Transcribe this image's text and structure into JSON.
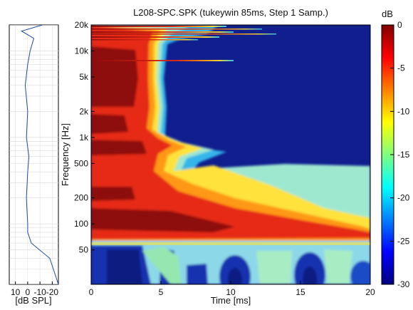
{
  "chart_data": {
    "type": "heatmap",
    "title": "L208-SPC.SPK (tukeywin 85ms, Step 1 Samp.)",
    "xlabel": "Time [ms]",
    "ylabel": "Frequency [Hz]",
    "xlim": [
      0,
      20
    ],
    "ylim": [
      20,
      20000
    ],
    "yscale": "log",
    "xticks": [
      0,
      5,
      10,
      15,
      20
    ],
    "xtick_labels": [
      "0",
      "5",
      "10",
      "15",
      "20"
    ],
    "yticks": [
      50,
      100,
      200,
      500,
      1000,
      2000,
      5000,
      10000,
      20000
    ],
    "ytick_labels": [
      "50",
      "100",
      "200",
      "500",
      "1k",
      "2k",
      "5k",
      "10k",
      "20k"
    ],
    "colorbar": {
      "label": "dB",
      "range": [
        -30,
        0
      ],
      "ticks": [
        0,
        -5,
        -10,
        -15,
        -20,
        -25,
        -30
      ],
      "tick_labels": [
        "0",
        "-5",
        "-10",
        "-15",
        "-20",
        "-25",
        "-30"
      ],
      "colormap": "jet"
    },
    "decay_contour_ms": [
      {
        "f": 60,
        "t": 20
      },
      {
        "f": 80,
        "t": 20
      },
      {
        "f": 100,
        "t": 15
      },
      {
        "f": 150,
        "t": 9
      },
      {
        "f": 250,
        "t": 7
      },
      {
        "f": 400,
        "t": 6.5
      },
      {
        "f": 600,
        "t": 8
      },
      {
        "f": 800,
        "t": 6
      },
      {
        "f": 1000,
        "t": 4.5
      },
      {
        "f": 2000,
        "t": 4.7
      },
      {
        "f": 5000,
        "t": 4.6
      },
      {
        "f": 10000,
        "t": 3.5
      },
      {
        "f": 15000,
        "t": 11
      },
      {
        "f": 20000,
        "t": 12
      }
    ],
    "side_panel": {
      "xlabel": "[dB SPL]",
      "xticks": [
        10,
        0,
        -10,
        -20
      ],
      "xtick_labels": [
        "10",
        "0",
        "-10",
        "-20"
      ],
      "response_db": [
        {
          "f": 20,
          "db": -25
        },
        {
          "f": 40,
          "db": -18
        },
        {
          "f": 60,
          "db": -3
        },
        {
          "f": 80,
          "db": 0
        },
        {
          "f": 100,
          "db": 0
        },
        {
          "f": 200,
          "db": 1
        },
        {
          "f": 400,
          "db": 0
        },
        {
          "f": 600,
          "db": -1
        },
        {
          "f": 1000,
          "db": 1
        },
        {
          "f": 2000,
          "db": 0
        },
        {
          "f": 4000,
          "db": 2
        },
        {
          "f": 7000,
          "db": 0
        },
        {
          "f": 10000,
          "db": -2
        },
        {
          "f": 14000,
          "db": -5
        },
        {
          "f": 17000,
          "db": 5
        },
        {
          "f": 20000,
          "db": -12
        }
      ]
    },
    "colors": {
      "bg_low": "#0a1f8a",
      "peak": "#7a0a0a"
    },
    "grid": true
  }
}
